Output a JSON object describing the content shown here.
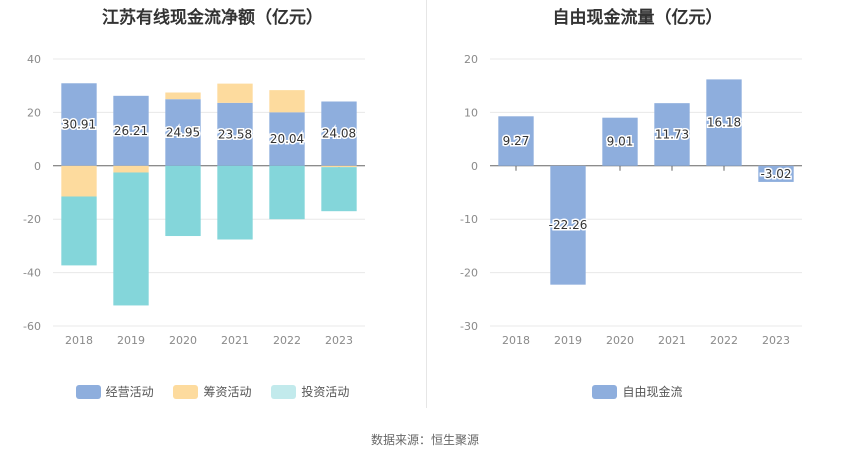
{
  "source": "数据来源：恒生聚源",
  "chart_data": [
    {
      "type": "bar",
      "stacked": true,
      "title": "江苏有线现金流净额（亿元）",
      "categories": [
        "2018",
        "2019",
        "2020",
        "2021",
        "2022",
        "2023"
      ],
      "ylim": [
        -60,
        40
      ],
      "yticks": [
        40,
        20,
        0,
        -20,
        -40,
        -60
      ],
      "series": [
        {
          "name": "经营活动",
          "color": "#8eaedd",
          "values": [
            30.91,
            26.21,
            24.95,
            23.58,
            20.04,
            24.08
          ],
          "labels": [
            "30.91",
            "26.21",
            "24.95",
            "23.58",
            "20.04",
            "24.08"
          ]
        },
        {
          "name": "筹资活动",
          "color": "#fddb9e",
          "values": [
            -11.5,
            -2.5,
            2.5,
            7.2,
            8.3,
            -0.5
          ]
        },
        {
          "name": "投资活动",
          "color": "#84d6da",
          "values": [
            -25.8,
            -49.8,
            -26.3,
            -27.6,
            -20.0,
            -16.5
          ]
        }
      ]
    },
    {
      "type": "bar",
      "title": "自由现金流量（亿元）",
      "categories": [
        "2018",
        "2019",
        "2020",
        "2021",
        "2022",
        "2023"
      ],
      "ylim": [
        -30,
        20
      ],
      "yticks": [
        20,
        10,
        0,
        -10,
        -20,
        -30
      ],
      "series": [
        {
          "name": "自由现金流",
          "color": "#8eaedd",
          "values": [
            9.27,
            -22.26,
            9.01,
            11.73,
            16.18,
            -3.02
          ],
          "labels": [
            "9.27",
            "-22.26",
            "9.01",
            "11.73",
            "16.18",
            "-3.02"
          ]
        }
      ]
    }
  ]
}
